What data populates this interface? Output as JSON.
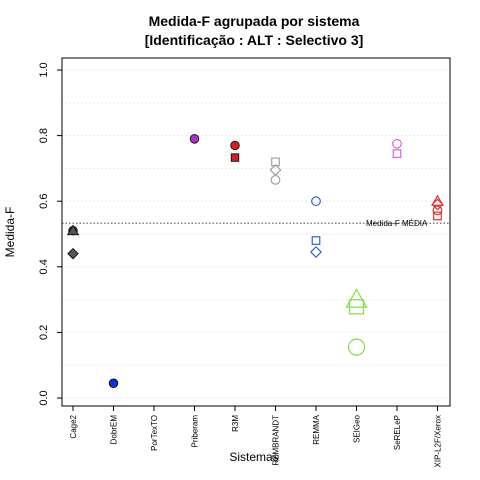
{
  "chart_data": {
    "type": "scatter",
    "title": "Medida-F agrupada por sistema",
    "subtitle": "[Identificação : ALT : Selectivo 3]",
    "xlabel": "Sistemas",
    "ylabel": "Medida-F",
    "ylim": [
      0,
      1
    ],
    "yticks": [
      "0.0",
      "0.2",
      "0.4",
      "0.6",
      "0.8",
      "1.0"
    ],
    "grid": "horizontal dotted",
    "categories": [
      "Cage2",
      "DobrEM",
      "PorTexTO",
      "Priberam",
      "R3M",
      "REMBRANDT",
      "REMMA",
      "SEIGeo",
      "SeRELeP",
      "XIP-L2F/Xerox"
    ],
    "reference_line": {
      "label": "Medida-F MÉDIA",
      "value": 0.533
    },
    "points": [
      {
        "category": "Cage2",
        "value": 0.51,
        "shape": "circle",
        "color": "#555555",
        "fill": true
      },
      {
        "category": "Cage2",
        "value": 0.51,
        "shape": "triangle",
        "color": "#555555",
        "fill": true
      },
      {
        "category": "Cage2",
        "value": 0.44,
        "shape": "diamond",
        "color": "#555555",
        "fill": true
      },
      {
        "category": "DobrEM",
        "value": 0.045,
        "shape": "circle",
        "color": "#1030e0",
        "fill": true
      },
      {
        "category": "Priberam",
        "value": 0.79,
        "shape": "circle",
        "color": "#b030d0",
        "fill": true
      },
      {
        "category": "R3M",
        "value": 0.77,
        "shape": "circle",
        "color": "#d02020",
        "fill": true
      },
      {
        "category": "R3M",
        "value": 0.733,
        "shape": "square",
        "color": "#d02020",
        "fill": true
      },
      {
        "category": "REMBRANDT",
        "value": 0.72,
        "shape": "square",
        "color": "#a0a0a0",
        "fill": false
      },
      {
        "category": "REMBRANDT",
        "value": 0.695,
        "shape": "diamond",
        "color": "#a0a0a0",
        "fill": false
      },
      {
        "category": "REMBRANDT",
        "value": 0.665,
        "shape": "circle",
        "color": "#a0a0a0",
        "fill": false
      },
      {
        "category": "REMMA",
        "value": 0.6,
        "shape": "circle",
        "color": "#3060e8",
        "fill": false
      },
      {
        "category": "REMMA",
        "value": 0.48,
        "shape": "square",
        "color": "#3060e8",
        "fill": false
      },
      {
        "category": "REMMA",
        "value": 0.445,
        "shape": "diamond",
        "color": "#3060e8",
        "fill": false
      },
      {
        "category": "SEIGeo",
        "value": 0.3,
        "shape": "triangle",
        "color": "#80e040",
        "fill": false,
        "size": "large"
      },
      {
        "category": "SEIGeo",
        "value": 0.278,
        "shape": "square",
        "color": "#80e040",
        "fill": false,
        "size": "large"
      },
      {
        "category": "SEIGeo",
        "value": 0.155,
        "shape": "circle",
        "color": "#80e040",
        "fill": false,
        "size": "large"
      },
      {
        "category": "SeRELeP",
        "value": 0.775,
        "shape": "circle",
        "color": "#e060e0",
        "fill": false
      },
      {
        "category": "SeRELeP",
        "value": 0.745,
        "shape": "square",
        "color": "#e060e0",
        "fill": false
      },
      {
        "category": "XIP-L2F/Xerox",
        "value": 0.6,
        "shape": "triangle",
        "color": "#e03030",
        "fill": false
      },
      {
        "category": "XIP-L2F/Xerox",
        "value": 0.59,
        "shape": "diamond",
        "color": "#e03030",
        "fill": false
      },
      {
        "category": "XIP-L2F/Xerox",
        "value": 0.572,
        "shape": "circle",
        "color": "#e03030",
        "fill": false
      },
      {
        "category": "XIP-L2F/Xerox",
        "value": 0.555,
        "shape": "square",
        "color": "#e03030",
        "fill": false
      }
    ]
  }
}
